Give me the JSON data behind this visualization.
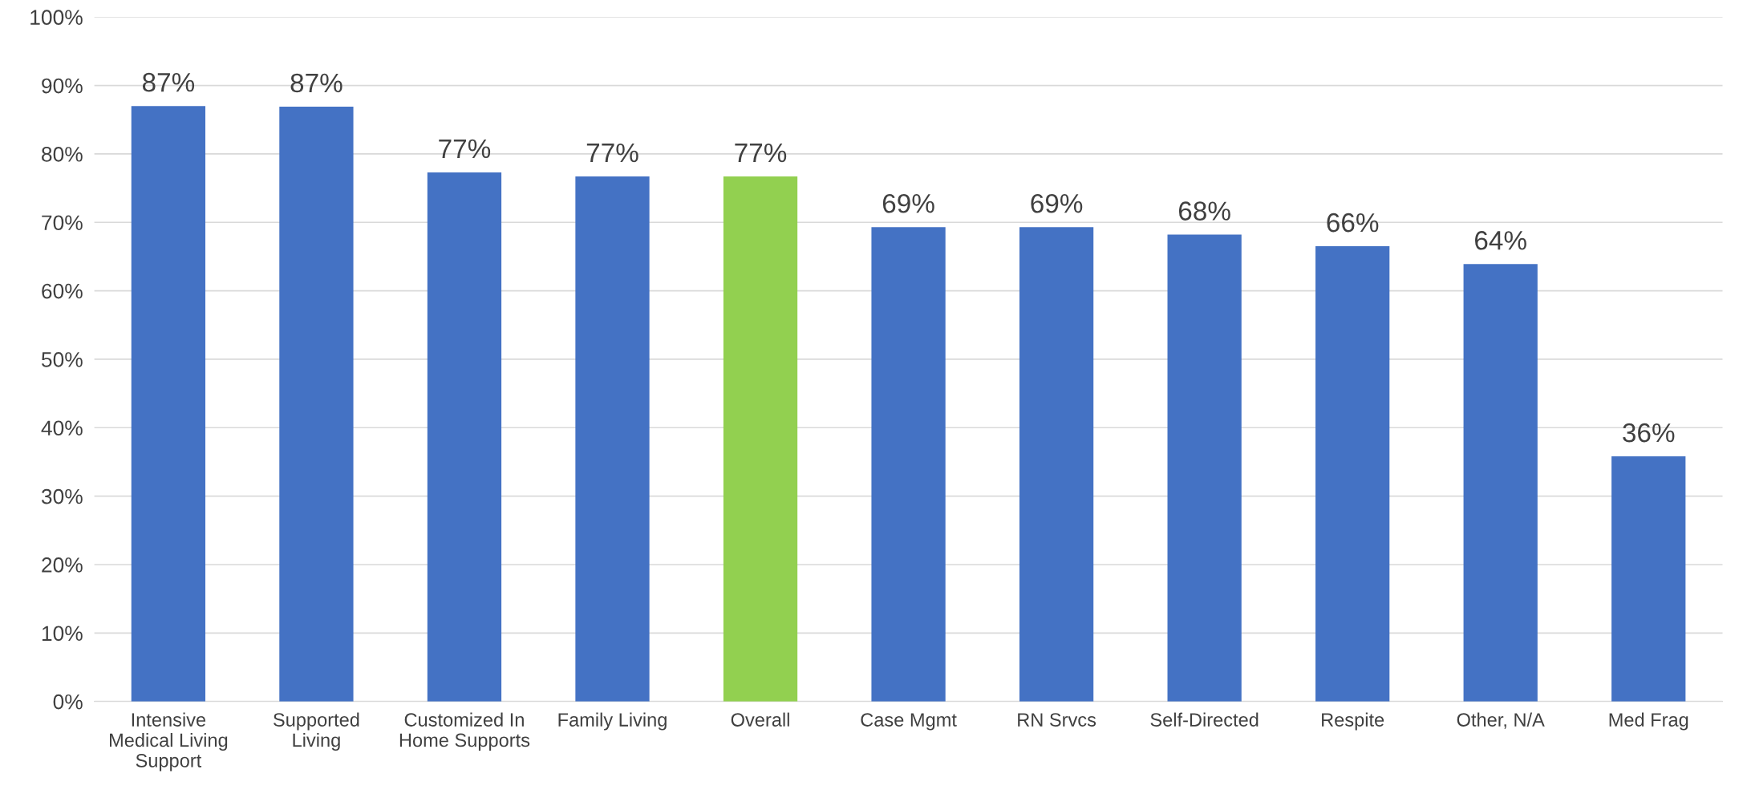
{
  "chart_data": {
    "type": "bar",
    "categories": [
      "Intensive Medical Living Support",
      "Supported Living",
      "Customized In Home Supports",
      "Family Living",
      "Overall",
      "Case Mgmt",
      "RN Srvcs",
      "Self-Directed",
      "Respite",
      "Other, N/A",
      "Med Frag"
    ],
    "values": [
      87.0,
      86.9,
      77.3,
      76.7,
      76.7,
      69.3,
      69.3,
      68.2,
      66.5,
      63.9,
      35.8
    ],
    "value_labels": [
      "87%",
      "87%",
      "77%",
      "77%",
      "77%",
      "69%",
      "69%",
      "68%",
      "66%",
      "64%",
      "36%"
    ],
    "colors": [
      "#4472c4",
      "#4472c4",
      "#4472c4",
      "#4472c4",
      "#92d050",
      "#4472c4",
      "#4472c4",
      "#4472c4",
      "#4472c4",
      "#4472c4",
      "#4472c4"
    ],
    "ylim": [
      0,
      100
    ],
    "yticks": [
      {
        "value": 0,
        "label": "0%"
      },
      {
        "value": 10,
        "label": "10%"
      },
      {
        "value": 20,
        "label": "20%"
      },
      {
        "value": 30,
        "label": "30%"
      },
      {
        "value": 40,
        "label": "40%"
      },
      {
        "value": 50,
        "label": "50%"
      },
      {
        "value": 60,
        "label": "60%"
      },
      {
        "value": 70,
        "label": "70%"
      },
      {
        "value": 80,
        "label": "80%"
      },
      {
        "value": 90,
        "label": "90%"
      },
      {
        "value": 100,
        "label": "100%"
      }
    ],
    "grid": "y"
  }
}
